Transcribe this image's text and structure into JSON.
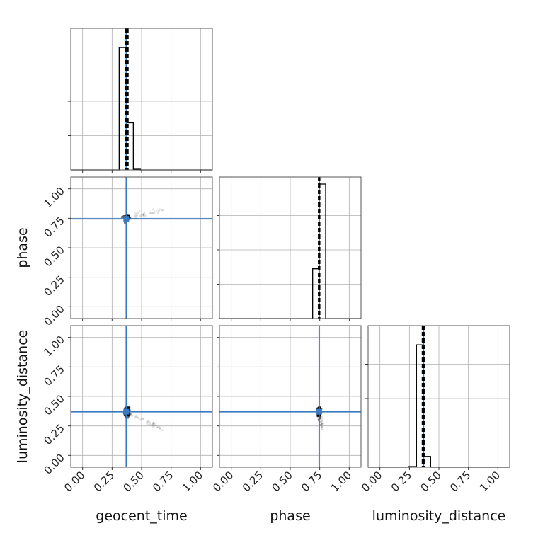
{
  "chart_data": {
    "type": "corner",
    "parameters": [
      "geocent_time",
      "phase",
      "luminosity_distance"
    ],
    "axis_labels": {
      "x": [
        "geocent_time",
        "phase",
        "luminosity_distance"
      ],
      "y": [
        "",
        "phase",
        "luminosity_distance"
      ]
    },
    "axis_range": [
      -0.1,
      1.1
    ],
    "ticks": [
      0.0,
      0.25,
      0.5,
      0.75,
      1.0
    ],
    "tick_labels": [
      "0.00",
      "0.25",
      "0.50",
      "0.75",
      "1.00"
    ],
    "grid": true,
    "injection_values": {
      "geocent_time": 0.37,
      "phase": 0.745,
      "luminosity_distance": 0.37
    },
    "histograms": [
      {
        "parameter": "geocent_time",
        "bin_edges": [
          0.31,
          0.37,
          0.43,
          0.49
        ],
        "heights": [
          0.91,
          0.35,
          0.005
        ]
      },
      {
        "parameter": "phase",
        "bin_edges": [
          0.69,
          0.745,
          0.8
        ],
        "heights": [
          0.37,
          1.0
        ]
      },
      {
        "parameter": "luminosity_distance",
        "bin_edges": [
          0.24,
          0.31,
          0.37,
          0.43
        ],
        "heights": [
          0.005,
          0.91,
          0.08
        ]
      }
    ],
    "quantile_lines": {
      "geocent_time": [
        0.365,
        0.375,
        0.385
      ],
      "phase": [
        0.74,
        0.745,
        0.75
      ],
      "luminosity_distance": [
        0.36,
        0.37,
        0.38
      ]
    },
    "scatter_panels": [
      {
        "x_param": "geocent_time",
        "y_param": "phase",
        "center": [
          0.375,
          0.755
        ],
        "spread": [
          0.02,
          0.02
        ],
        "tail_to": [
          0.68,
          0.81
        ]
      },
      {
        "x_param": "geocent_time",
        "y_param": "luminosity_distance",
        "center": [
          0.375,
          0.37
        ],
        "spread": [
          0.02,
          0.035
        ],
        "tail_to": [
          0.68,
          0.22
        ]
      },
      {
        "x_param": "phase",
        "y_param": "luminosity_distance",
        "center": [
          0.745,
          0.37
        ],
        "spread": [
          0.012,
          0.035
        ],
        "tail_to": [
          0.77,
          0.22
        ]
      }
    ],
    "colors": {
      "truth_line": "#3b7bbf",
      "histogram": "#000000",
      "grid": "#b0b0b0",
      "points": "#000000"
    }
  }
}
